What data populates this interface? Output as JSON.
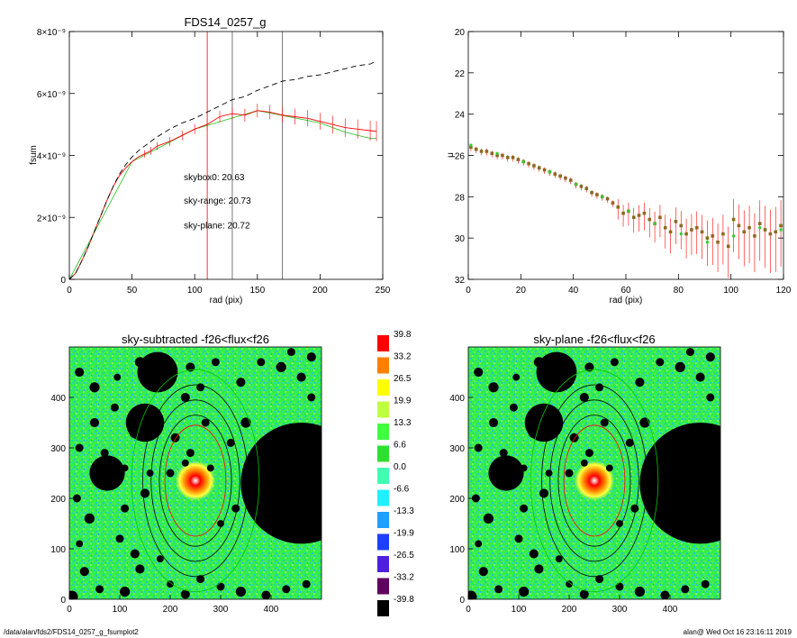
{
  "footer": {
    "path": "/data/alan/fds2/FDS14_0257_g_fsumplot2",
    "stamp": "alan@  Wed Oct 16 23:16:11 2019"
  },
  "colorbar_labels": [
    "39.8",
    "33.2",
    "26.5",
    "19.9",
    "13.3",
    "6.6",
    "0.0",
    "-6.6",
    "-13.3",
    "-19.9",
    "-26.5",
    "-33.2",
    "-39.8"
  ],
  "colorbar_colors": [
    "#ff0000",
    "#ff7f00",
    "#ffff00",
    "#bfff3f",
    "#3fff3f",
    "#2fdf2f",
    "#3fffb0",
    "#1ff0ff",
    "#1f9fff",
    "#1f3fff",
    "#4f1fdf",
    "#5f005f",
    "#000000"
  ],
  "chart_data": [
    {
      "type": "line",
      "title": "FDS14_0257_g",
      "xlabel": "rad (pix)",
      "ylabel": "fsum",
      "xlim": [
        0,
        250
      ],
      "ylim": [
        0,
        8e-09
      ],
      "xticks": [
        "0",
        "50",
        "100",
        "150",
        "200",
        "250"
      ],
      "yticks": [
        "0",
        "2×10⁻⁹",
        "4×10⁻⁹",
        "6×10⁻⁹",
        "8×10⁻⁹"
      ],
      "vlines": [
        {
          "x": 110,
          "color": "#ff0000"
        },
        {
          "x": 130,
          "color": "#555555"
        },
        {
          "x": 170,
          "color": "#555555"
        }
      ],
      "annotations": [
        {
          "text": "skybox0: 20.63",
          "color": "#000000",
          "x": 77,
          "y": 3.2e-09
        },
        {
          "text": "sky-range: 20.73",
          "color": "#ff0000",
          "x": 77,
          "y": 2.45e-09
        },
        {
          "text": "sky-plane: 20.72",
          "color": "#00cc00",
          "x": 77,
          "y": 1.65e-09
        }
      ],
      "series": [
        {
          "color": "#000000",
          "dashed": true,
          "x": [
            0,
            5,
            10,
            15,
            20,
            25,
            30,
            35,
            40,
            45,
            50,
            55,
            60,
            65,
            70,
            80,
            90,
            100,
            110,
            120,
            130,
            140,
            150,
            160,
            170,
            180,
            190,
            200,
            210,
            220,
            230,
            240,
            245
          ],
          "y": [
            0,
            2e-10,
            6e-10,
            1.05e-09,
            1.55e-09,
            2.05e-09,
            2.55e-09,
            3e-09,
            3.4e-09,
            3.7e-09,
            3.95e-09,
            4.15e-09,
            4.3e-09,
            4.45e-09,
            4.6e-09,
            4.85e-09,
            5.05e-09,
            5.2e-09,
            5.4e-09,
            5.6e-09,
            5.8e-09,
            5.9e-09,
            6.1e-09,
            6.25e-09,
            6.4e-09,
            6.45e-09,
            6.55e-09,
            6.6e-09,
            6.7e-09,
            6.8e-09,
            6.9e-09,
            6.95e-09,
            7.05e-09
          ]
        },
        {
          "color": "#ff0000",
          "errorbars": true,
          "x": [
            0,
            5,
            10,
            15,
            20,
            25,
            30,
            35,
            40,
            45,
            50,
            55,
            60,
            65,
            70,
            80,
            90,
            100,
            110,
            120,
            130,
            140,
            150,
            160,
            170,
            180,
            190,
            200,
            210,
            220,
            230,
            240,
            245
          ],
          "y": [
            0,
            2e-10,
            6e-10,
            1.05e-09,
            1.55e-09,
            2.05e-09,
            2.55e-09,
            3e-09,
            3.35e-09,
            3.6e-09,
            3.8e-09,
            3.95e-09,
            4.05e-09,
            4.15e-09,
            4.3e-09,
            4.45e-09,
            4.65e-09,
            4.85e-09,
            5e-09,
            5.25e-09,
            5.35e-09,
            5.3e-09,
            5.45e-09,
            5.4e-09,
            5.3e-09,
            5.25e-09,
            5.2e-09,
            5.1e-09,
            5e-09,
            4.9e-09,
            4.85e-09,
            4.8e-09,
            4.78e-09
          ]
        },
        {
          "color": "#33cc33",
          "x": [
            0,
            50,
            100,
            150,
            200,
            210,
            220,
            230,
            240,
            245
          ],
          "y": [
            0,
            3.8e-09,
            4.85e-09,
            5.45e-09,
            5.05e-09,
            4.9e-09,
            4.75e-09,
            4.65e-09,
            4.55e-09,
            4.55e-09
          ]
        }
      ]
    },
    {
      "type": "scatter",
      "xlabel": "rad (pix)",
      "ylabel": "μ",
      "xlim": [
        0,
        120
      ],
      "ylim": [
        20,
        32
      ],
      "y_inverted": true,
      "xticks": [
        "0",
        "20",
        "40",
        "60",
        "80",
        "100",
        "120"
      ],
      "yticks": [
        "20",
        "22",
        "24",
        "26",
        "28",
        "30",
        "32"
      ],
      "series": [
        {
          "color": "#ff0000",
          "x": [
            1,
            3,
            5,
            7,
            9,
            11,
            13,
            15,
            17,
            19,
            21,
            23,
            25,
            27,
            29,
            31,
            33,
            35,
            37,
            39,
            41,
            43,
            45,
            47,
            49,
            51,
            53,
            55,
            57,
            59,
            61,
            63,
            65,
            67,
            69,
            71,
            73,
            75,
            77,
            79,
            81,
            83,
            85,
            87,
            89,
            91,
            93,
            95,
            97,
            99,
            101,
            103,
            105,
            107,
            109,
            111,
            113,
            115,
            117,
            119
          ],
          "y": [
            25.6,
            25.7,
            25.8,
            25.8,
            25.9,
            26.0,
            26.0,
            26.1,
            26.1,
            26.2,
            26.3,
            26.4,
            26.5,
            26.6,
            26.7,
            26.8,
            26.9,
            27.0,
            27.1,
            27.2,
            27.4,
            27.5,
            27.6,
            27.8,
            27.9,
            28.0,
            28.1,
            28.3,
            28.5,
            28.8,
            28.7,
            29.0,
            28.9,
            28.8,
            29.1,
            29.3,
            29.0,
            29.5,
            29.7,
            29.2,
            29.4,
            29.8,
            29.6,
            29.5,
            29.7,
            30.0,
            29.9,
            30.2,
            29.8,
            30.4,
            29.1,
            29.4,
            29.7,
            29.5,
            29.9,
            29.3,
            29.6,
            29.8,
            29.7,
            29.4
          ]
        },
        {
          "color": "#33cc33",
          "x": [
            1,
            11,
            21,
            31,
            41,
            51,
            61,
            71,
            81,
            91,
            101,
            111,
            119
          ],
          "y": [
            25.5,
            25.9,
            26.3,
            26.8,
            27.4,
            28.0,
            28.7,
            29.3,
            29.8,
            30.2,
            29.9,
            29.5,
            29.6
          ]
        }
      ]
    },
    {
      "type": "heatmap",
      "title": "sky-subtracted -f26<flux<f26",
      "xlim": [
        0,
        500
      ],
      "ylim": [
        0,
        500
      ],
      "xticks": [
        "0",
        "100",
        "200",
        "300",
        "400"
      ],
      "yticks": [
        "0",
        "100",
        "200",
        "300",
        "400"
      ]
    },
    {
      "type": "heatmap",
      "title": "sky-plane -f26<flux<f26",
      "xlim": [
        0,
        500
      ],
      "ylim": [
        0,
        500
      ],
      "xticks": [
        "0",
        "100",
        "200",
        "300",
        "400"
      ],
      "yticks": [
        "0",
        "100",
        "200",
        "300",
        "400"
      ]
    }
  ]
}
